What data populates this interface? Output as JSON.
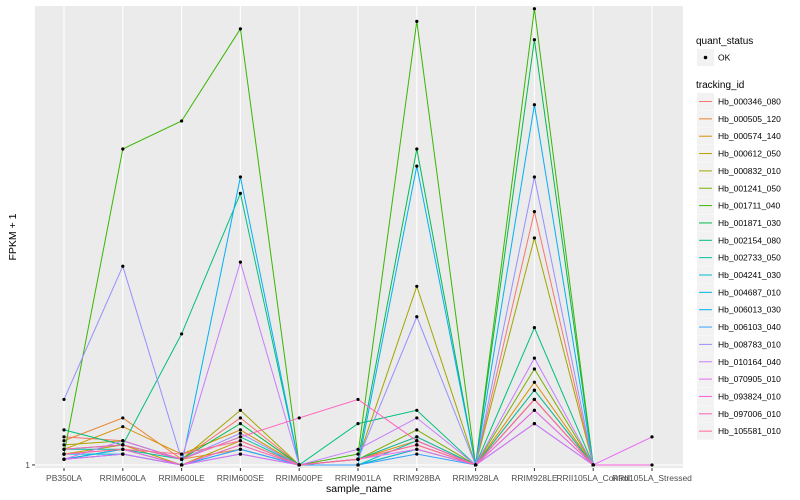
{
  "chart_data": {
    "type": "line",
    "xlabel": "sample_name",
    "ylabel": "FPKM + 1",
    "y_tick_labels": [
      {
        "value": 1,
        "label": "1"
      }
    ],
    "categories": [
      "PB350LA",
      "RRIM600LA",
      "RRIM600LE",
      "RRIM600SE",
      "RRIM600PE",
      "RRIM901LA",
      "RRIM928BA",
      "RRIM928LA",
      "RRIM928LE",
      "RRII105LA_Control",
      "RRII105LA_Stressed"
    ],
    "y_scale": "log",
    "ylim": [
      0.95,
      2200
    ],
    "grid": true,
    "legend": {
      "position": "right",
      "quant_status_title": "quant_status",
      "quant_status_item": "OK",
      "tracking_title": "tracking_id"
    },
    "series": [
      {
        "name": "Hb_000346_080",
        "color": "#F8766D",
        "values": [
          1.6,
          1.5,
          1.1,
          2.2,
          1.0,
          1.1,
          1.6,
          1.0,
          70,
          1.0,
          null
        ]
      },
      {
        "name": "Hb_000505_120",
        "color": "#EA8331",
        "values": [
          1.5,
          2.2,
          1.1,
          1.3,
          1.0,
          1.1,
          1.4,
          1.0,
          3.5,
          1.0,
          null
        ]
      },
      {
        "name": "Hb_000574_140",
        "color": "#D89000",
        "values": [
          1.3,
          1.9,
          1.2,
          1.8,
          1.0,
          1.1,
          1.5,
          1.0,
          4.0,
          1.0,
          null
        ]
      },
      {
        "name": "Hb_000612_050",
        "color": "#C09B00",
        "values": [
          1.2,
          1.4,
          1.0,
          1.5,
          1.0,
          1.0,
          1.3,
          1.0,
          3.0,
          1.0,
          null
        ]
      },
      {
        "name": "Hb_000832_010",
        "color": "#A3A500",
        "values": [
          1.4,
          1.5,
          1.1,
          2.5,
          1.0,
          1.1,
          20,
          1.0,
          45,
          1.0,
          null
        ]
      },
      {
        "name": "Hb_001241_050",
        "color": "#7CAE00",
        "values": [
          1.1,
          1.3,
          1.0,
          1.4,
          1.0,
          1.1,
          1.8,
          1.0,
          5.0,
          1.0,
          null
        ]
      },
      {
        "name": "Hb_001711_040",
        "color": "#39B600",
        "values": [
          1.2,
          200,
          320,
          1500,
          1.0,
          1.2,
          1700,
          1.0,
          2100,
          1.0,
          null
        ]
      },
      {
        "name": "Hb_001871_030",
        "color": "#00BB4E",
        "values": [
          1.3,
          1.4,
          1.1,
          2.0,
          1.0,
          1.1,
          200,
          1.0,
          1250,
          1.0,
          null
        ]
      },
      {
        "name": "Hb_002154_080",
        "color": "#00BF7D",
        "values": [
          1.8,
          1.4,
          9,
          95,
          1.0,
          2.0,
          2.5,
          1.0,
          10,
          1.0,
          null
        ]
      },
      {
        "name": "Hb_002733_050",
        "color": "#00C1A3",
        "values": [
          1.3,
          1.3,
          1.1,
          1.6,
          1.0,
          1.1,
          1.6,
          1.0,
          3.5,
          1.0,
          null
        ]
      },
      {
        "name": "Hb_004241_030",
        "color": "#00BFC4",
        "values": [
          1.1,
          1.2,
          1.0,
          1.3,
          1.0,
          1.0,
          1.5,
          1.0,
          3.0,
          1.0,
          null
        ]
      },
      {
        "name": "Hb_004687_010",
        "color": "#00BAE0",
        "values": [
          1.2,
          1.2,
          1.0,
          1.2,
          1.0,
          1.0,
          1.3,
          1.0,
          2.0,
          1.0,
          null
        ]
      },
      {
        "name": "Hb_006013_030",
        "color": "#00B0F6",
        "values": [
          1.1,
          1.3,
          1.0,
          125,
          1.0,
          1.0,
          150,
          1.0,
          420,
          1.0,
          null
        ]
      },
      {
        "name": "Hb_006103_040",
        "color": "#35A2FF",
        "values": [
          1.1,
          1.2,
          1.0,
          1.3,
          1.0,
          1.0,
          1.2,
          1.0,
          2.5,
          1.0,
          null
        ]
      },
      {
        "name": "Hb_008783_010",
        "color": "#9590FF",
        "values": [
          3.0,
          28,
          1.1,
          1.7,
          1.0,
          1.1,
          12,
          1.0,
          125,
          1.0,
          null
        ]
      },
      {
        "name": "Hb_010164_040",
        "color": "#C77CFF",
        "values": [
          1.1,
          1.5,
          1.1,
          30,
          1.0,
          1.3,
          2.2,
          1.0,
          6.0,
          1.0,
          null
        ]
      },
      {
        "name": "Hb_070905_010",
        "color": "#E76BF3",
        "values": [
          1.1,
          1.2,
          1.0,
          1.2,
          1.0,
          1.1,
          1.3,
          1.0,
          2.0,
          1.0,
          1.6
        ]
      },
      {
        "name": "Hb_093824_010",
        "color": "#FA62DB",
        "values": [
          1.2,
          1.3,
          1.0,
          1.4,
          1.0,
          1.1,
          1.4,
          1.0,
          2.5,
          1.0,
          1.0
        ]
      },
      {
        "name": "Hb_097006_010",
        "color": "#FF62BC",
        "values": [
          1.3,
          1.4,
          1.1,
          1.6,
          2.2,
          3.0,
          1.5,
          1.0,
          3.0,
          1.0,
          null
        ]
      },
      {
        "name": "Hb_105581_010",
        "color": "#FF6C91",
        "values": [
          1.2,
          1.3,
          1.2,
          1.5,
          1.0,
          1.1,
          1.4,
          1.0,
          3.0,
          1.0,
          null
        ]
      }
    ]
  }
}
